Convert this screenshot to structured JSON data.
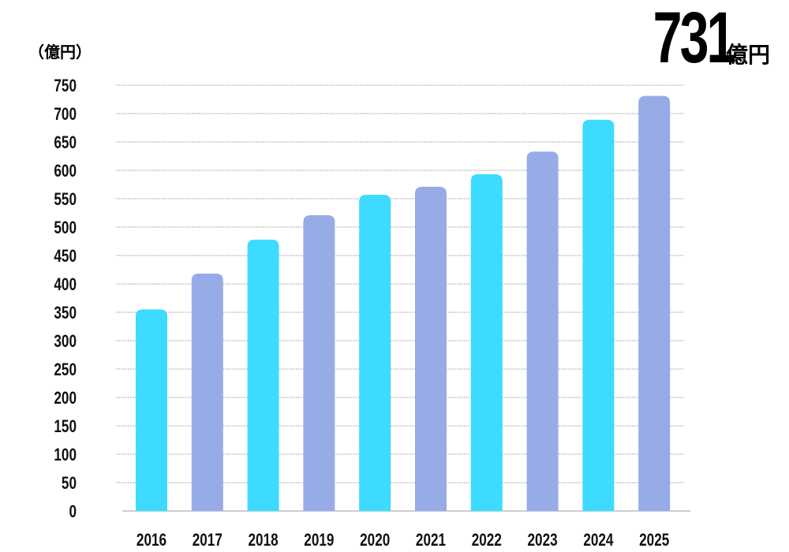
{
  "chart_data": {
    "type": "bar",
    "title": "",
    "unit_label": "（億円）",
    "headline": {
      "value": "731",
      "unit": "億円"
    },
    "categories": [
      "2016",
      "2017",
      "2018",
      "2019",
      "2020",
      "2021",
      "2022",
      "2023",
      "2024",
      "2025"
    ],
    "values": [
      355,
      418,
      478,
      521,
      557,
      571,
      593,
      633,
      689,
      731
    ],
    "colors": [
      "#3ddbff",
      "#97abe7",
      "#3ddbff",
      "#97abe7",
      "#3ddbff",
      "#97abe7",
      "#3ddbff",
      "#97abe7",
      "#3ddbff",
      "#97abe7"
    ],
    "ylim": [
      0,
      750
    ],
    "yticks": [
      "0",
      "50",
      "100",
      "150",
      "200",
      "250",
      "300",
      "350",
      "400",
      "450",
      "500",
      "550",
      "600",
      "650",
      "700",
      "750"
    ],
    "grid": true,
    "xlabel": "",
    "ylabel": "億円"
  }
}
